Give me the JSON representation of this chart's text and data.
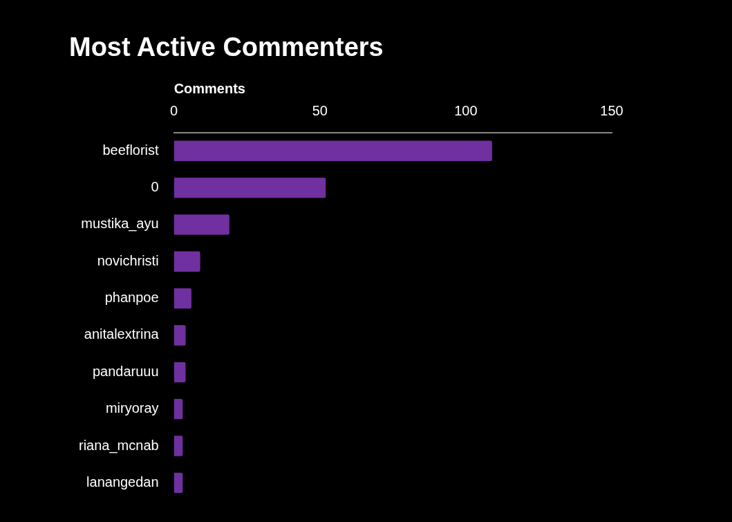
{
  "chart_data": {
    "type": "bar",
    "orientation": "horizontal",
    "title": "Most Active Commenters",
    "xlabel": "Comments",
    "categories": [
      "beeflorist",
      "0",
      "mustika_ayu",
      "novichristi",
      "phanpoe",
      "anitalextrina",
      "pandaruuu",
      "miryoray",
      "riana_mcnab",
      "lanangedan"
    ],
    "values": [
      109,
      52,
      19,
      9,
      6,
      4,
      4,
      3,
      3,
      3
    ],
    "color": "#7030a0",
    "xlim": [
      0,
      150
    ],
    "xticks": [
      0,
      50,
      100,
      150
    ],
    "grid": false,
    "legend": false
  }
}
